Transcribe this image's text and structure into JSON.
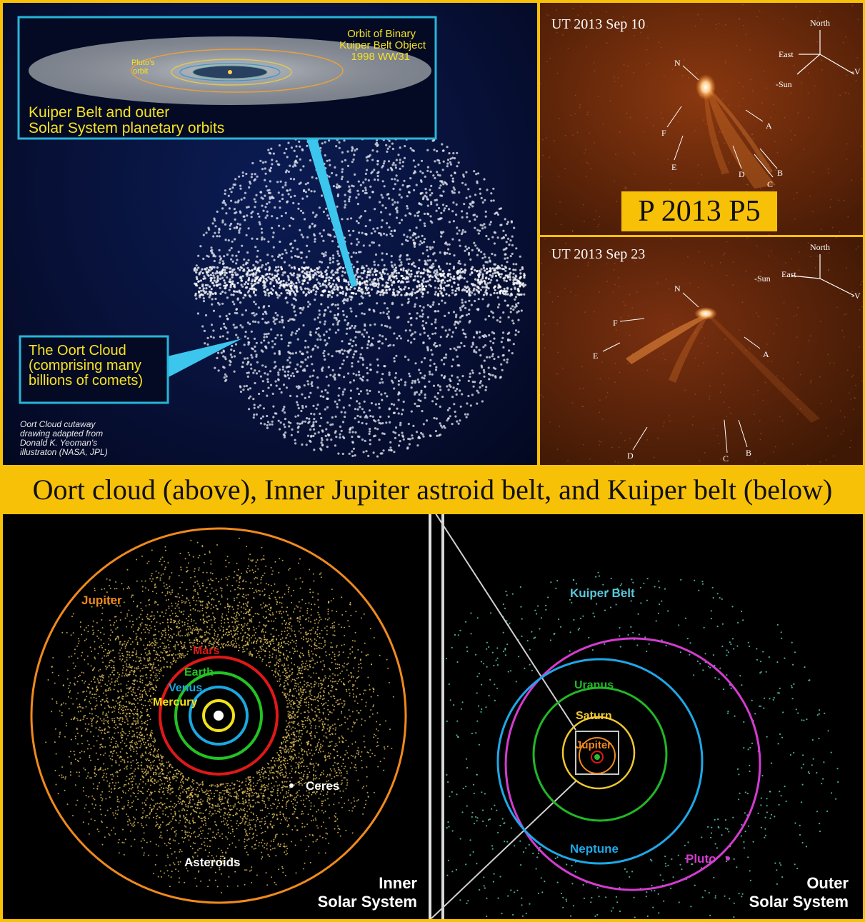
{
  "oort_panel": {
    "kuiper_box": {
      "orbit_binary": [
        "Orbit of Binary",
        "Kuiper Belt Object",
        "1998 WW31"
      ],
      "pluto_orbit": [
        "Pluto's",
        "orbit"
      ],
      "title": [
        "Kuiper Belt and outer",
        "Solar System planetary orbits"
      ]
    },
    "oort_box": [
      "The Oort Cloud",
      "(comprising many",
      "billions of comets)"
    ],
    "credit": [
      "Oort Cloud cutaway",
      "drawing adapted from",
      "Donald K. Yeoman's",
      "illustraton (NASA, JPL)"
    ]
  },
  "comet_top": {
    "date": "UT 2013 Sep 10",
    "compass": {
      "north": "North",
      "east": "East",
      "sun": "-Sun",
      "v": "-V"
    },
    "labels": {
      "n": "N",
      "a": "A",
      "b": "B",
      "c": "C",
      "d": "D",
      "e": "E",
      "f": "F"
    }
  },
  "comet_tag": "P 2013 P5",
  "comet_bottom": {
    "date": "UT 2013 Sep 23",
    "compass": {
      "north": "North",
      "east": "East",
      "sun": "-Sun",
      "v": "-V"
    },
    "labels": {
      "n": "N",
      "a": "A",
      "b": "B",
      "c": "C",
      "d": "D",
      "e": "E",
      "f": "F"
    }
  },
  "caption": "Oort cloud (above), Inner Jupiter astroid belt,  and Kuiper belt (below)",
  "inner_system": {
    "jupiter": "Jupiter",
    "mars": "Mars",
    "earth": "Earth",
    "venus": "Venus",
    "mercury": "Mercury",
    "ceres": "Ceres",
    "asteroids": "Asteroids",
    "title": [
      "Inner",
      "Solar System"
    ]
  },
  "outer_system": {
    "kuiper": "Kuiper Belt",
    "uranus": "Uranus",
    "saturn": "Saturn",
    "jupiter": "Jupiter",
    "neptune": "Neptune",
    "pluto": "Pluto",
    "title": [
      "Outer",
      "Solar System"
    ]
  },
  "colors": {
    "jupiter": "#f08a1c",
    "mars": "#e01818",
    "earth": "#22c322",
    "venus": "#1aa8e0",
    "mercury": "#f2e21a",
    "asteroid": "#e6c45a",
    "kuiper_dot": "#58c8b0",
    "neptune": "#1ea8e8",
    "pluto": "#d43cd0",
    "uranus": "#20b826",
    "saturn": "#f0c830",
    "cyan_box": "#27b6d8",
    "banner": "#f7c107"
  }
}
